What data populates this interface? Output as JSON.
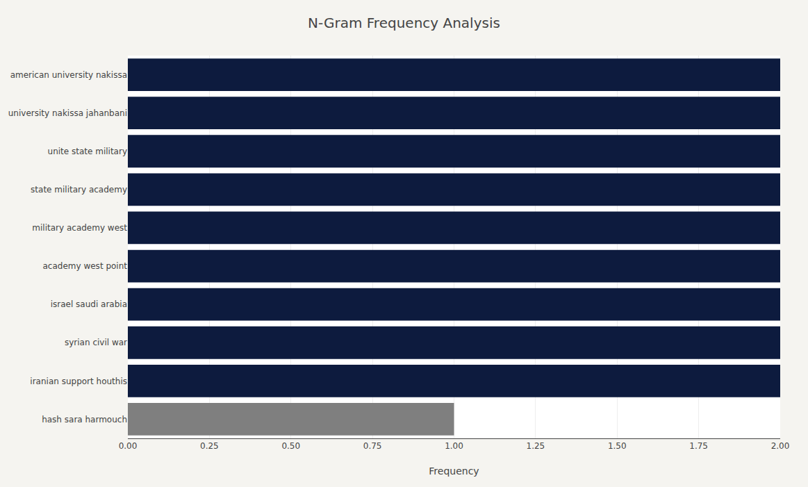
{
  "chart_data": {
    "type": "bar",
    "orientation": "horizontal",
    "title": "N-Gram Frequency Analysis",
    "categories": [
      "hash sara harmouch",
      "iranian support houthis",
      "syrian civil war",
      "israel saudi arabia",
      "academy west point",
      "military academy west",
      "state military academy",
      "unite state military",
      "university nakissa jahanbani",
      "american university nakissa"
    ],
    "values": [
      1,
      2,
      2,
      2,
      2,
      2,
      2,
      2,
      2,
      2
    ],
    "colors": [
      "#7f7f7f",
      "#0d1b3e",
      "#0d1b3e",
      "#0d1b3e",
      "#0d1b3e",
      "#0d1b3e",
      "#0d1b3e",
      "#0d1b3e",
      "#0d1b3e",
      "#0d1b3e"
    ],
    "xlabel": "Frequency",
    "xlim": [
      0,
      2.0
    ],
    "xticks": [
      {
        "value": 0.0,
        "label": "0.00"
      },
      0.25,
      {
        "value": 0.5,
        "label": "0.50"
      },
      0.75,
      {
        "value": 1.0,
        "label": "1.00"
      },
      1.25,
      {
        "value": 1.5,
        "label": "1.50"
      },
      1.75,
      {
        "value": 2.0,
        "label": "2.00"
      }
    ],
    "grid": true
  }
}
